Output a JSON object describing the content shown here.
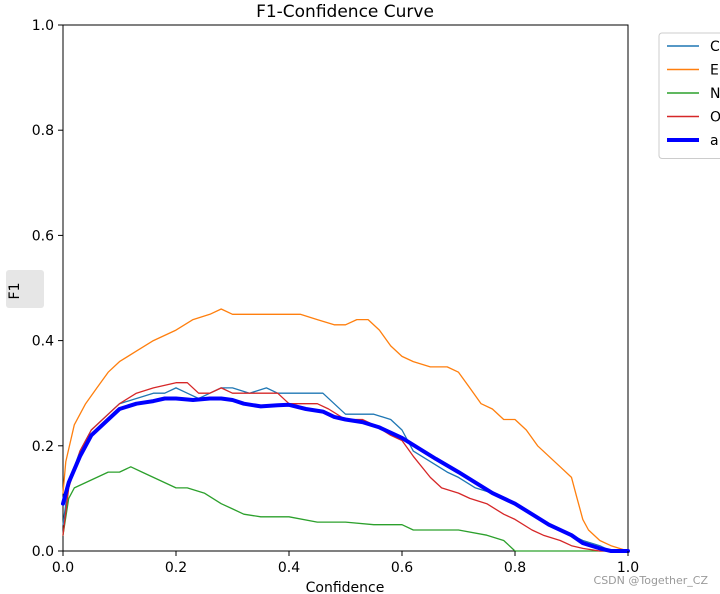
{
  "chart_data": {
    "type": "line",
    "title": "F1-Confidence Curve",
    "xlabel": "Confidence",
    "ylabel": "F1",
    "xlim": [
      0.0,
      1.0
    ],
    "ylim": [
      0.0,
      1.0
    ],
    "xticks": [
      "0.0",
      "0.2",
      "0.4",
      "0.6",
      "0.8",
      "1.0"
    ],
    "yticks": [
      "0.0",
      "0.2",
      "0.4",
      "0.6",
      "0.8",
      "1.0"
    ],
    "legend_position": "outside-top-right",
    "series": [
      {
        "name": "C",
        "color": "#1f77b4",
        "width": "thin",
        "x": [
          0,
          0.01,
          0.03,
          0.05,
          0.08,
          0.1,
          0.13,
          0.16,
          0.18,
          0.2,
          0.22,
          0.24,
          0.26,
          0.28,
          0.3,
          0.33,
          0.36,
          0.38,
          0.4,
          0.43,
          0.46,
          0.48,
          0.5,
          0.52,
          0.55,
          0.58,
          0.6,
          0.62,
          0.65,
          0.68,
          0.7,
          0.73,
          0.76,
          0.8,
          0.83,
          0.86,
          0.88,
          0.9,
          0.92,
          0.95,
          0.97,
          1.0
        ],
        "values": [
          0.05,
          0.13,
          0.19,
          0.23,
          0.26,
          0.28,
          0.29,
          0.3,
          0.3,
          0.31,
          0.3,
          0.29,
          0.3,
          0.31,
          0.31,
          0.3,
          0.31,
          0.3,
          0.3,
          0.3,
          0.3,
          0.28,
          0.26,
          0.26,
          0.26,
          0.25,
          0.23,
          0.19,
          0.17,
          0.15,
          0.14,
          0.12,
          0.11,
          0.09,
          0.07,
          0.05,
          0.04,
          0.03,
          0.02,
          0.01,
          0.0,
          0.0
        ]
      },
      {
        "name": "E",
        "color": "#ff7f0e",
        "width": "thin",
        "x": [
          0,
          0.005,
          0.02,
          0.04,
          0.06,
          0.08,
          0.1,
          0.13,
          0.16,
          0.2,
          0.23,
          0.26,
          0.28,
          0.3,
          0.32,
          0.35,
          0.38,
          0.4,
          0.42,
          0.45,
          0.48,
          0.5,
          0.52,
          0.54,
          0.56,
          0.58,
          0.6,
          0.62,
          0.65,
          0.68,
          0.7,
          0.72,
          0.74,
          0.76,
          0.78,
          0.8,
          0.82,
          0.84,
          0.86,
          0.88,
          0.9,
          0.91,
          0.92,
          0.93,
          0.95,
          0.97,
          1.0
        ],
        "values": [
          0.11,
          0.17,
          0.24,
          0.28,
          0.31,
          0.34,
          0.36,
          0.38,
          0.4,
          0.42,
          0.44,
          0.45,
          0.46,
          0.45,
          0.45,
          0.45,
          0.45,
          0.45,
          0.45,
          0.44,
          0.43,
          0.43,
          0.44,
          0.44,
          0.42,
          0.39,
          0.37,
          0.36,
          0.35,
          0.35,
          0.34,
          0.31,
          0.28,
          0.27,
          0.25,
          0.25,
          0.23,
          0.2,
          0.18,
          0.16,
          0.14,
          0.1,
          0.06,
          0.04,
          0.02,
          0.01,
          0.0
        ]
      },
      {
        "name": "N",
        "color": "#2ca02c",
        "width": "thin",
        "x": [
          0,
          0.01,
          0.02,
          0.04,
          0.06,
          0.08,
          0.1,
          0.12,
          0.14,
          0.16,
          0.18,
          0.2,
          0.22,
          0.25,
          0.28,
          0.3,
          0.32,
          0.35,
          0.4,
          0.45,
          0.5,
          0.55,
          0.6,
          0.62,
          0.65,
          0.7,
          0.75,
          0.78,
          0.8,
          0.85,
          0.9,
          1.0
        ],
        "values": [
          0.03,
          0.1,
          0.12,
          0.13,
          0.14,
          0.15,
          0.15,
          0.16,
          0.15,
          0.14,
          0.13,
          0.12,
          0.12,
          0.11,
          0.09,
          0.08,
          0.07,
          0.065,
          0.065,
          0.055,
          0.055,
          0.05,
          0.05,
          0.04,
          0.04,
          0.04,
          0.03,
          0.02,
          0.0,
          0.0,
          0.0,
          0.0
        ]
      },
      {
        "name": "O",
        "color": "#d62728",
        "width": "thin",
        "x": [
          0,
          0.01,
          0.03,
          0.05,
          0.08,
          0.1,
          0.13,
          0.16,
          0.2,
          0.22,
          0.24,
          0.26,
          0.28,
          0.3,
          0.33,
          0.36,
          0.38,
          0.4,
          0.43,
          0.45,
          0.47,
          0.5,
          0.53,
          0.55,
          0.58,
          0.6,
          0.62,
          0.65,
          0.67,
          0.7,
          0.72,
          0.75,
          0.78,
          0.8,
          0.83,
          0.85,
          0.88,
          0.9,
          0.92,
          0.95,
          1.0
        ],
        "values": [
          0.03,
          0.12,
          0.19,
          0.23,
          0.26,
          0.28,
          0.3,
          0.31,
          0.32,
          0.32,
          0.3,
          0.3,
          0.31,
          0.3,
          0.3,
          0.3,
          0.3,
          0.28,
          0.28,
          0.28,
          0.27,
          0.25,
          0.25,
          0.24,
          0.22,
          0.21,
          0.18,
          0.14,
          0.12,
          0.11,
          0.1,
          0.09,
          0.07,
          0.06,
          0.04,
          0.03,
          0.02,
          0.01,
          0.005,
          0.0,
          0.0
        ]
      },
      {
        "name": "a",
        "color": "#0000ff",
        "width": "thick",
        "x": [
          0,
          0.01,
          0.03,
          0.05,
          0.08,
          0.1,
          0.13,
          0.16,
          0.18,
          0.2,
          0.23,
          0.26,
          0.28,
          0.3,
          0.32,
          0.35,
          0.38,
          0.4,
          0.43,
          0.46,
          0.48,
          0.5,
          0.53,
          0.56,
          0.6,
          0.63,
          0.66,
          0.7,
          0.73,
          0.76,
          0.8,
          0.83,
          0.86,
          0.9,
          0.92,
          0.95,
          0.97,
          1.0
        ],
        "values": [
          0.09,
          0.13,
          0.18,
          0.22,
          0.25,
          0.27,
          0.28,
          0.285,
          0.29,
          0.29,
          0.287,
          0.29,
          0.29,
          0.287,
          0.28,
          0.275,
          0.277,
          0.278,
          0.27,
          0.265,
          0.255,
          0.25,
          0.245,
          0.235,
          0.215,
          0.195,
          0.175,
          0.15,
          0.13,
          0.11,
          0.09,
          0.07,
          0.05,
          0.03,
          0.015,
          0.005,
          0.0,
          0.0
        ]
      }
    ]
  },
  "watermark": "CSDN @Together_CZ"
}
